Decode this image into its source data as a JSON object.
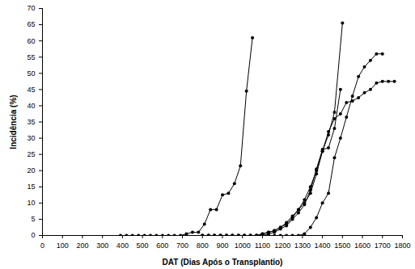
{
  "chart_data": {
    "type": "line",
    "xlabel": "DAT (Dias Após o Transplantio)",
    "ylabel": "Incidência (%)",
    "xlim": [
      0,
      1800
    ],
    "xticks": [
      0,
      100,
      200,
      300,
      400,
      500,
      600,
      700,
      800,
      900,
      1000,
      1100,
      1200,
      1300,
      1400,
      1500,
      1600,
      1700,
      1800
    ],
    "ylim": [
      0,
      70
    ],
    "yticks": [
      0,
      5,
      10,
      15,
      20,
      25,
      30,
      35,
      40,
      45,
      50,
      55,
      60,
      65,
      70
    ],
    "grid": false,
    "marker": "circle",
    "line_style": "solid",
    "series": [
      {
        "color": "#000000",
        "x": [
          390,
          420,
          450,
          480,
          510,
          540,
          570,
          600,
          630,
          660,
          690,
          720,
          750,
          780,
          810,
          840,
          870,
          900,
          930,
          960,
          990,
          1020,
          1050
        ],
        "values": [
          0,
          0,
          0,
          0,
          0,
          0,
          0,
          0,
          0,
          0,
          0,
          0.5,
          1,
          1,
          3.5,
          8,
          8,
          12.5,
          13,
          16,
          21.5,
          44.5,
          61
        ]
      },
      {
        "color": "#000000",
        "x": [
          800,
          830,
          860,
          890,
          920,
          950,
          980,
          1010,
          1040,
          1070,
          1100,
          1130,
          1160,
          1190,
          1220,
          1250,
          1280,
          1310,
          1340,
          1370,
          1400,
          1430,
          1460,
          1500
        ],
        "values": [
          0,
          0,
          0,
          0,
          0,
          0,
          0,
          0,
          0,
          0,
          0.5,
          1,
          1.5,
          2.5,
          3.5,
          5.5,
          8,
          10,
          13,
          19,
          26,
          31,
          38,
          65.5
        ]
      },
      {
        "color": "#000000",
        "x": [
          800,
          830,
          860,
          890,
          920,
          950,
          980,
          1010,
          1040,
          1070,
          1100,
          1130,
          1160,
          1190,
          1220,
          1250,
          1280,
          1310,
          1340,
          1370,
          1400,
          1430,
          1460,
          1490
        ],
        "values": [
          0,
          0,
          0,
          0,
          0,
          0,
          0,
          0,
          0,
          0,
          0,
          0.5,
          1,
          2,
          3,
          5,
          7,
          9.5,
          14,
          20.5,
          26.5,
          27,
          33,
          45
        ]
      },
      {
        "color": "#000000",
        "x": [
          800,
          830,
          860,
          890,
          920,
          950,
          980,
          1010,
          1040,
          1070,
          1100,
          1130,
          1160,
          1190,
          1220,
          1250,
          1280,
          1310,
          1340,
          1370,
          1400,
          1430,
          1460,
          1490,
          1520,
          1550,
          1580,
          1610,
          1640,
          1670,
          1700
        ],
        "values": [
          0,
          0,
          0,
          0,
          0,
          0,
          0,
          0,
          0,
          0,
          0,
          0,
          0,
          0,
          0,
          0,
          0,
          0.5,
          2.5,
          5.5,
          10,
          13,
          24,
          30,
          36.5,
          43,
          49,
          52,
          54,
          56,
          56
        ]
      },
      {
        "color": "#000000",
        "x": [
          800,
          830,
          860,
          890,
          920,
          950,
          980,
          1010,
          1040,
          1070,
          1100,
          1130,
          1160,
          1190,
          1220,
          1250,
          1280,
          1310,
          1340,
          1370,
          1400,
          1430,
          1460,
          1490,
          1520,
          1550,
          1580,
          1610,
          1640,
          1670,
          1700,
          1730,
          1760
        ],
        "values": [
          0,
          0,
          0,
          0,
          0,
          0,
          0,
          0,
          0,
          0,
          0.5,
          1,
          1.5,
          2.5,
          4,
          6,
          8,
          11,
          15,
          20,
          26,
          32,
          36,
          37.5,
          41,
          41.5,
          42.5,
          44,
          45,
          47,
          47.5,
          47.5,
          47.5
        ]
      }
    ]
  }
}
